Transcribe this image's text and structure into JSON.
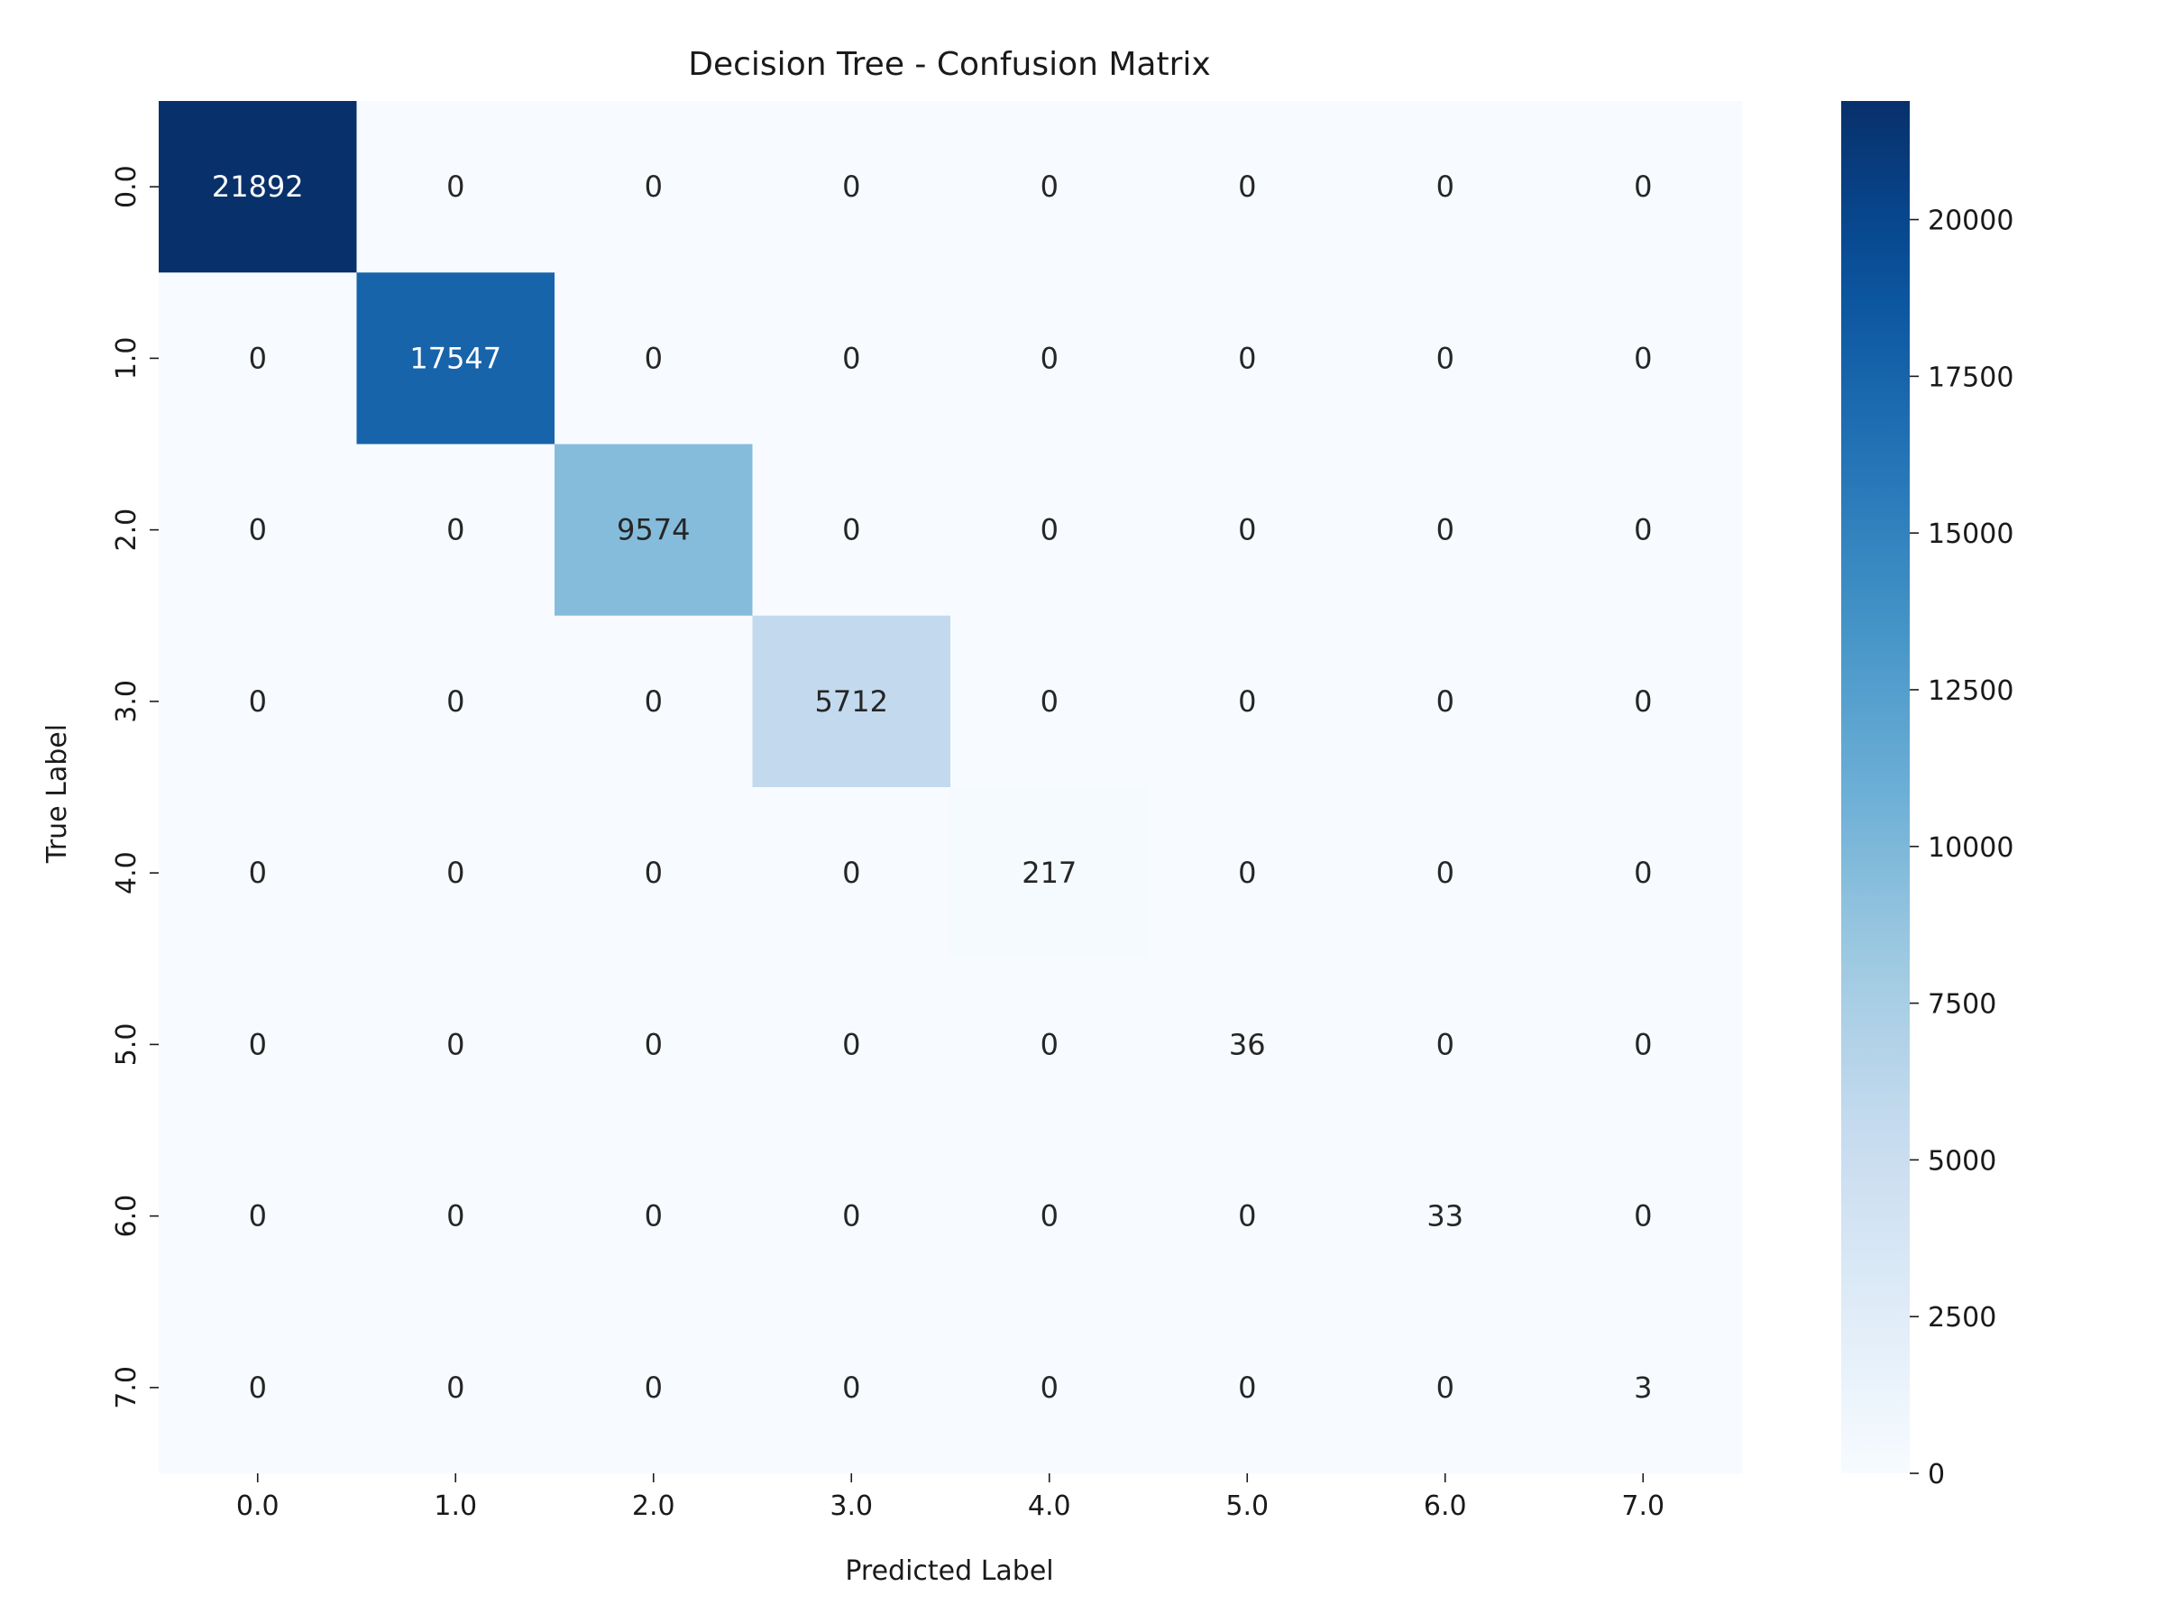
{
  "chart_data": {
    "type": "heatmap",
    "title": "Decision Tree - Confusion Matrix",
    "xlabel": "Predicted Label",
    "ylabel": "True Label",
    "x_categories": [
      "0.0",
      "1.0",
      "2.0",
      "3.0",
      "4.0",
      "5.0",
      "6.0",
      "7.0"
    ],
    "y_categories": [
      "0.0",
      "1.0",
      "2.0",
      "3.0",
      "4.0",
      "5.0",
      "6.0",
      "7.0"
    ],
    "values": [
      [
        21892,
        0,
        0,
        0,
        0,
        0,
        0,
        0
      ],
      [
        0,
        17547,
        0,
        0,
        0,
        0,
        0,
        0
      ],
      [
        0,
        0,
        9574,
        0,
        0,
        0,
        0,
        0
      ],
      [
        0,
        0,
        0,
        5712,
        0,
        0,
        0,
        0
      ],
      [
        0,
        0,
        0,
        0,
        217,
        0,
        0,
        0
      ],
      [
        0,
        0,
        0,
        0,
        0,
        36,
        0,
        0
      ],
      [
        0,
        0,
        0,
        0,
        0,
        0,
        33,
        0
      ],
      [
        0,
        0,
        0,
        0,
        0,
        0,
        0,
        3
      ]
    ],
    "colorbar": {
      "colormap": "Blues",
      "range": [
        0,
        21892
      ],
      "ticks": [
        0,
        2500,
        5000,
        7500,
        10000,
        12500,
        15000,
        17500,
        20000
      ]
    },
    "annotations": true,
    "grid": false
  }
}
